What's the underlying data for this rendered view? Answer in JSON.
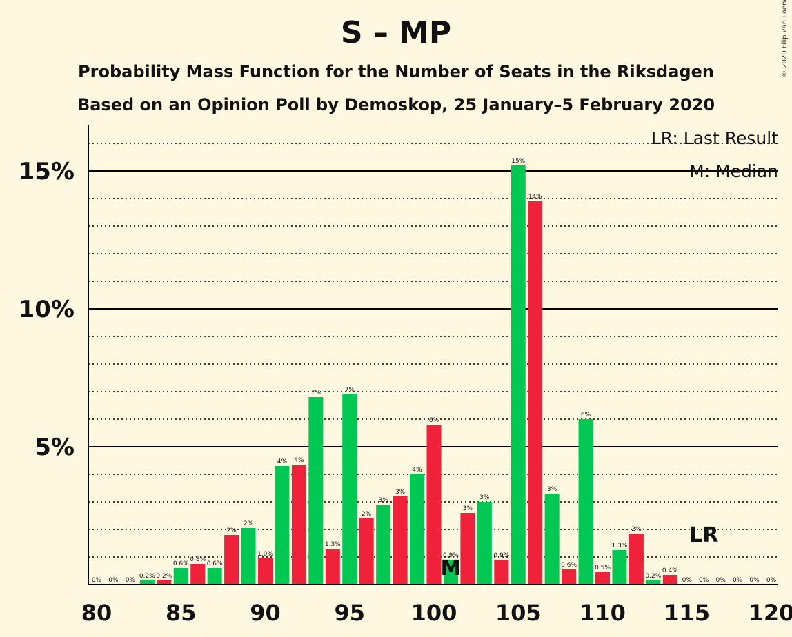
{
  "title": "S – MP",
  "subtitle_1": "Probability Mass Function for the Number of Seats in the Riksdagen",
  "subtitle_2": "Based on an Opinion Poll by Demoskop, 25 January–5 February 2020",
  "copyright": "© 2020 Filip van Laenen",
  "legend": {
    "last_result": "LR: Last Result",
    "median": "M: Median"
  },
  "markers": {
    "median_label": "M",
    "median_seat": 101,
    "last_result_label": "LR",
    "last_result_seat": 116
  },
  "colors": {
    "green": "#00c853",
    "red": "#f0213b",
    "background": "#fff8e1"
  },
  "chart_data": {
    "type": "bar",
    "xlim": [
      80,
      120
    ],
    "ylim": [
      0,
      16.5
    ],
    "x_ticks": [
      80,
      85,
      90,
      95,
      100,
      105,
      110,
      115,
      120
    ],
    "y_ticks": [
      {
        "value": 5,
        "label": "5%"
      },
      {
        "value": 10,
        "label": "10%"
      },
      {
        "value": 15,
        "label": "15%"
      }
    ],
    "grid": "dotted every 1%, solid every 5%",
    "x": [
      80,
      81,
      82,
      83,
      84,
      85,
      86,
      87,
      88,
      89,
      90,
      91,
      92,
      93,
      94,
      95,
      96,
      97,
      98,
      99,
      100,
      101,
      102,
      103,
      104,
      105,
      106,
      107,
      108,
      109,
      110,
      111,
      112,
      113,
      114,
      115,
      116,
      117,
      118,
      119,
      120
    ],
    "values": [
      0,
      0,
      0,
      0.15,
      0.15,
      0.6,
      0.75,
      0.6,
      1.8,
      2.05,
      0.95,
      4.3,
      4.35,
      6.8,
      1.3,
      6.9,
      2.4,
      2.9,
      3.2,
      4.0,
      5.8,
      0.9,
      2.6,
      3.0,
      0.9,
      15.2,
      13.9,
      3.3,
      0.55,
      6.0,
      0.45,
      1.25,
      1.85,
      0.15,
      0.35,
      0,
      0,
      0,
      0,
      0,
      0
    ],
    "labels": [
      "0%",
      "0%",
      "0%",
      "0.2%",
      "0.2%",
      "0.6%",
      "0.8%",
      "0.6%",
      "2%",
      "2%",
      "1.0%",
      "4%",
      "4%",
      "7%",
      "1.3%",
      "7%",
      "2%",
      "3%",
      "3%",
      "4%",
      "6%",
      "0.9%",
      "3%",
      "3%",
      "0.9%",
      "15%",
      "14%",
      "3%",
      "0.6%",
      "6%",
      "0.5%",
      "1.3%",
      "2%",
      "0.2%",
      "0.4%",
      "0%",
      "0%",
      "0%",
      "0%",
      "0%",
      "0%"
    ]
  }
}
